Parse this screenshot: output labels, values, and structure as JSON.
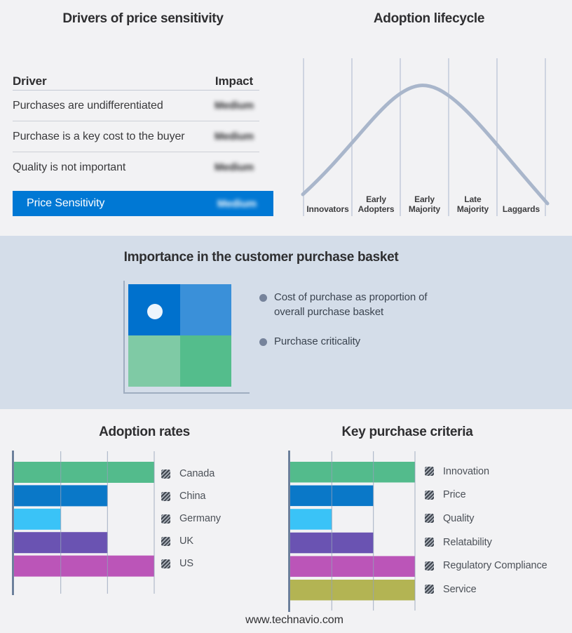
{
  "page": {
    "footer_url": "www.technavio.com",
    "background": "#f2f2f4",
    "band_background": "#d4dde9"
  },
  "basket": {
    "title": "Importance in the customer purchase basket",
    "bullets": [
      "Cost of purchase as proportion of overall purchase basket",
      "Purchase criticality"
    ],
    "quadrant_colors": [
      "#0071cd",
      "#3a90d9",
      "#7fcaa5",
      "#54bd8c"
    ]
  },
  "chart_data": [
    {
      "id": "drivers_of_price_sensitivity",
      "type": "table",
      "title": "Drivers of price sensitivity",
      "columns": [
        "Driver",
        "Impact"
      ],
      "rows": [
        [
          "Purchases are undifferentiated",
          "Medium"
        ],
        [
          "Purchase is a key cost to the buyer",
          "Medium"
        ],
        [
          "Quality is not important",
          "Medium"
        ]
      ],
      "summary_row": {
        "label": "Price Sensitivity",
        "impact": "Medium"
      },
      "highlight_color": "#0078d4",
      "impact_values_blurred": true
    },
    {
      "id": "adoption_lifecycle",
      "type": "line",
      "title": "Adoption lifecycle",
      "categories": [
        "Innovators",
        "Early Adopters",
        "Early Majority",
        "Late Majority",
        "Laggards"
      ],
      "curve": "bell",
      "peak_at": "Early Majority",
      "line_color": "#a9b6cb",
      "gridline_color": "#b7c1d4"
    },
    {
      "id": "adoption_rates",
      "type": "bar",
      "orientation": "horizontal",
      "title": "Adoption rates",
      "categories": [
        "Canada",
        "China",
        "Germany",
        "UK",
        "US"
      ],
      "values": [
        3,
        2,
        1,
        2,
        3
      ],
      "xlim": [
        0,
        3
      ],
      "gridlines": [
        1,
        2,
        3
      ],
      "grid": true,
      "legend_position": "right",
      "colors": [
        "#53bb8c",
        "#0a78c8",
        "#3ac3f7",
        "#6a53b2",
        "#bb55b8"
      ]
    },
    {
      "id": "key_purchase_criteria",
      "type": "bar",
      "orientation": "horizontal",
      "title": "Key purchase criteria",
      "categories": [
        "Innovation",
        "Price",
        "Quality",
        "Relatability",
        "Regulatory Compliance",
        "Service"
      ],
      "values": [
        3,
        2,
        1,
        2,
        3,
        3
      ],
      "xlim": [
        0,
        3
      ],
      "gridlines": [
        1,
        2,
        3
      ],
      "grid": true,
      "legend_position": "right",
      "colors": [
        "#53bb8c",
        "#0a78c8",
        "#3ac3f7",
        "#6a53b2",
        "#bb55b8",
        "#b3b453"
      ]
    }
  ]
}
